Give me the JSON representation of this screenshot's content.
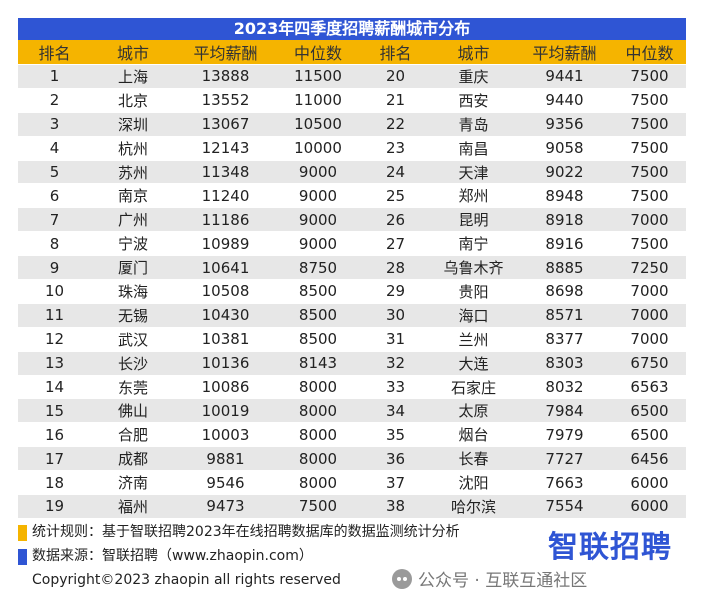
{
  "title": "2023年四季度招聘薪酬城市分布",
  "headers": [
    "排名",
    "城市",
    "平均薪酬",
    "中位数",
    "排名",
    "城市",
    "平均薪酬",
    "中位数"
  ],
  "rows": [
    [
      "1",
      "上海",
      "13888",
      "11500",
      "20",
      "重庆",
      "9441",
      "7500"
    ],
    [
      "2",
      "北京",
      "13552",
      "11000",
      "21",
      "西安",
      "9440",
      "7500"
    ],
    [
      "3",
      "深圳",
      "13067",
      "10500",
      "22",
      "青岛",
      "9356",
      "7500"
    ],
    [
      "4",
      "杭州",
      "12143",
      "10000",
      "23",
      "南昌",
      "9058",
      "7500"
    ],
    [
      "5",
      "苏州",
      "11348",
      "9000",
      "24",
      "天津",
      "9022",
      "7500"
    ],
    [
      "6",
      "南京",
      "11240",
      "9000",
      "25",
      "郑州",
      "8948",
      "7500"
    ],
    [
      "7",
      "广州",
      "11186",
      "9000",
      "26",
      "昆明",
      "8918",
      "7000"
    ],
    [
      "8",
      "宁波",
      "10989",
      "9000",
      "27",
      "南宁",
      "8916",
      "7500"
    ],
    [
      "9",
      "厦门",
      "10641",
      "8750",
      "28",
      "乌鲁木齐",
      "8885",
      "7250"
    ],
    [
      "10",
      "珠海",
      "10508",
      "8500",
      "29",
      "贵阳",
      "8698",
      "7000"
    ],
    [
      "11",
      "无锡",
      "10430",
      "8500",
      "30",
      "海口",
      "8571",
      "7000"
    ],
    [
      "12",
      "武汉",
      "10381",
      "8500",
      "31",
      "兰州",
      "8377",
      "7000"
    ],
    [
      "13",
      "长沙",
      "10136",
      "8143",
      "32",
      "大连",
      "8303",
      "6750"
    ],
    [
      "14",
      "东莞",
      "10086",
      "8000",
      "33",
      "石家庄",
      "8032",
      "6563"
    ],
    [
      "15",
      "佛山",
      "10019",
      "8000",
      "34",
      "太原",
      "7984",
      "6500"
    ],
    [
      "16",
      "合肥",
      "10003",
      "8000",
      "35",
      "烟台",
      "7979",
      "6500"
    ],
    [
      "17",
      "成都",
      "9881",
      "8000",
      "36",
      "长春",
      "7727",
      "6456"
    ],
    [
      "18",
      "济南",
      "9546",
      "8000",
      "37",
      "沈阳",
      "7663",
      "6000"
    ],
    [
      "19",
      "福州",
      "9473",
      "7500",
      "38",
      "哈尔滨",
      "7554",
      "6000"
    ]
  ],
  "footer": {
    "method": "统计规则：基于智联招聘2023年在线招聘数据库的数据监测统计分析",
    "source": "数据来源：智联招聘（www.zhaopin.com）",
    "copyright": "Copyright©2023 zhaopin all rights reserved",
    "logo": "智联招聘",
    "wechat": "公众号 · 互联互通社区"
  },
  "colors": {
    "title_bg": "#2f55d4",
    "header_bg": "#f5b400",
    "stripe": "#e7e7e7"
  }
}
